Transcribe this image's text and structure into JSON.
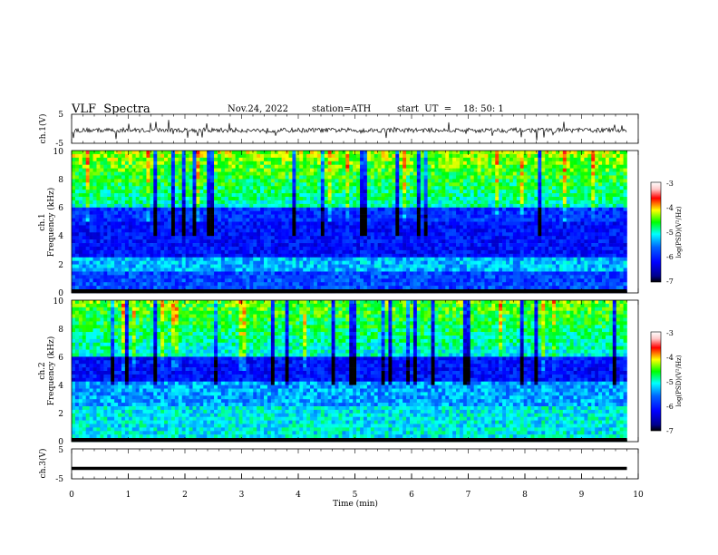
{
  "header": {
    "title": "VLF  Spectra",
    "date": "Nov.24, 2022",
    "station": "station=ATH",
    "start": "start  UT  =    18: 50: 1"
  },
  "chart_data": [
    {
      "type": "line",
      "panel": "ch1-waveform",
      "ylabel": "ch.1(V)",
      "yticks": [
        "5",
        "-5"
      ],
      "ylim": [
        -5,
        5
      ],
      "description_level": "~ -0.5 V with spiky noise",
      "x_range_min": [
        0,
        9.8
      ]
    },
    {
      "type": "heatmap",
      "panel": "ch1-spectrogram",
      "ylabel_top": "ch.1",
      "ylabel": "Frequency (kHz)",
      "yticks": [
        "0",
        "2",
        "4",
        "6",
        "8",
        "10"
      ],
      "ylim": [
        0,
        10
      ],
      "xlim": [
        0,
        10
      ],
      "colorbar": {
        "label": "log(PSD)(V²/Hz)",
        "ticks": [
          "-3",
          "-4",
          "-5",
          "-6",
          "-7"
        ],
        "range": [
          -7,
          -3
        ],
        "colors": [
          "#000000",
          "#00008c",
          "#0000ff",
          "#0064ff",
          "#00ffff",
          "#00ff00",
          "#ffff00",
          "#ff0000",
          "#ffc8c8",
          "#ffffff"
        ]
      }
    },
    {
      "type": "heatmap",
      "panel": "ch2-spectrogram",
      "ylabel_top": "ch.2",
      "ylabel": "Frequency (kHz)",
      "yticks": [
        "0",
        "2",
        "4",
        "6",
        "8",
        "10"
      ],
      "ylim": [
        0,
        10
      ],
      "xlim": [
        0,
        10
      ],
      "colorbar": {
        "label": "log(PSD)(V²/Hz)",
        "ticks": [
          "-3",
          "-4",
          "-5",
          "-6",
          "-7"
        ],
        "range": [
          -7,
          -3
        ]
      }
    },
    {
      "type": "line",
      "panel": "ch3-waveform",
      "ylabel": "ch.3(V)",
      "yticks": [
        "5",
        "-5"
      ],
      "ylim": [
        -5,
        5
      ],
      "level": -1.5,
      "xlabel": "Time  (min)",
      "xticks": [
        "0",
        "1",
        "2",
        "3",
        "4",
        "5",
        "6",
        "7",
        "8",
        "9",
        "10"
      ],
      "xlim": [
        0,
        10
      ]
    }
  ]
}
